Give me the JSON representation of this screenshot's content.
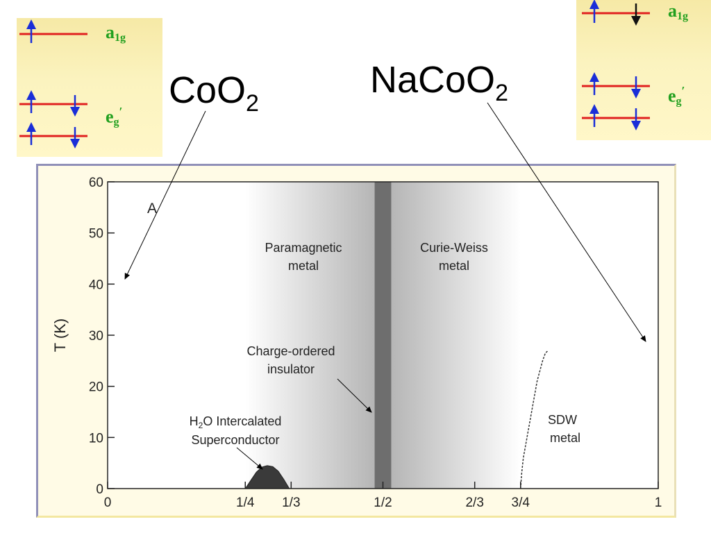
{
  "labels": {
    "left_compound": "CoO",
    "left_sub": "2",
    "right_compound": "NaCoO",
    "right_sub": "2"
  },
  "orbital_panels": {
    "left": {
      "a1g_text": "a",
      "a1g_sub": "1g",
      "eg_text": "e",
      "eg_sub": "g",
      "eg_prime": "′"
    },
    "right": {
      "a1g_text": "a",
      "a1g_sub": "1g",
      "eg_text": "e",
      "eg_sub": "g",
      "eg_prime": "′"
    }
  },
  "colors": {
    "level_line": "#e0201f",
    "spin_arrow": "#1a2ed8",
    "second_spin_arrow": "#111111",
    "orbital_label": "#22a01f",
    "panel_bg": "#fbf3bf",
    "charge_ordered_band": "#6e6e6e"
  },
  "chart_data": {
    "type": "phase-diagram",
    "panel_letter": "A",
    "ylabel": "T (K)",
    "xlabel": "",
    "ylim": [
      0,
      60
    ],
    "y_ticks": [
      0,
      10,
      20,
      30,
      40,
      50,
      60
    ],
    "x_ticks": [
      {
        "value": 0,
        "label": "0"
      },
      {
        "value": 0.25,
        "label": "1/4"
      },
      {
        "value": 0.3333,
        "label": "1/3"
      },
      {
        "value": 0.5,
        "label": "1/2"
      },
      {
        "value": 0.6667,
        "label": "2/3"
      },
      {
        "value": 0.75,
        "label": "3/4"
      },
      {
        "value": 1,
        "label": "1"
      }
    ],
    "regions": [
      {
        "name": "Paramagnetic metal",
        "x_from": 0.25,
        "x_to": 0.49
      },
      {
        "name": "Curie-Weiss metal",
        "x_from": 0.51,
        "x_to": 0.75
      },
      {
        "name": "Charge-ordered insulator",
        "x_from": 0.49,
        "x_to": 0.51
      }
    ],
    "superconducting_dome": {
      "label_line1": "O Intercalated",
      "label_prefix": "H",
      "label_sub": "2",
      "label_line2": "Superconductor",
      "x": [
        0.25,
        0.26,
        0.27,
        0.28,
        0.29,
        0.3,
        0.31,
        0.32,
        0.33
      ],
      "t": [
        0,
        1.6,
        3.2,
        4.2,
        4.5,
        4.3,
        3.4,
        1.8,
        0
      ]
    },
    "sdw_boundary": {
      "x": [
        0.75,
        0.752,
        0.755,
        0.76,
        0.765,
        0.77,
        0.775,
        0.78,
        0.785,
        0.79,
        0.795,
        0.8
      ],
      "t": [
        0,
        3,
        6,
        9,
        12,
        15,
        18,
        21,
        23,
        25,
        26.5,
        27
      ]
    },
    "annotations": {
      "paramagnetic_1": "Paramagnetic",
      "paramagnetic_2": "metal",
      "curie_1": "Curie-Weiss",
      "curie_2": "metal",
      "charge_1": "Charge-ordered",
      "charge_2": "insulator",
      "sdw_1": "SDW",
      "sdw_2": "metal"
    }
  }
}
